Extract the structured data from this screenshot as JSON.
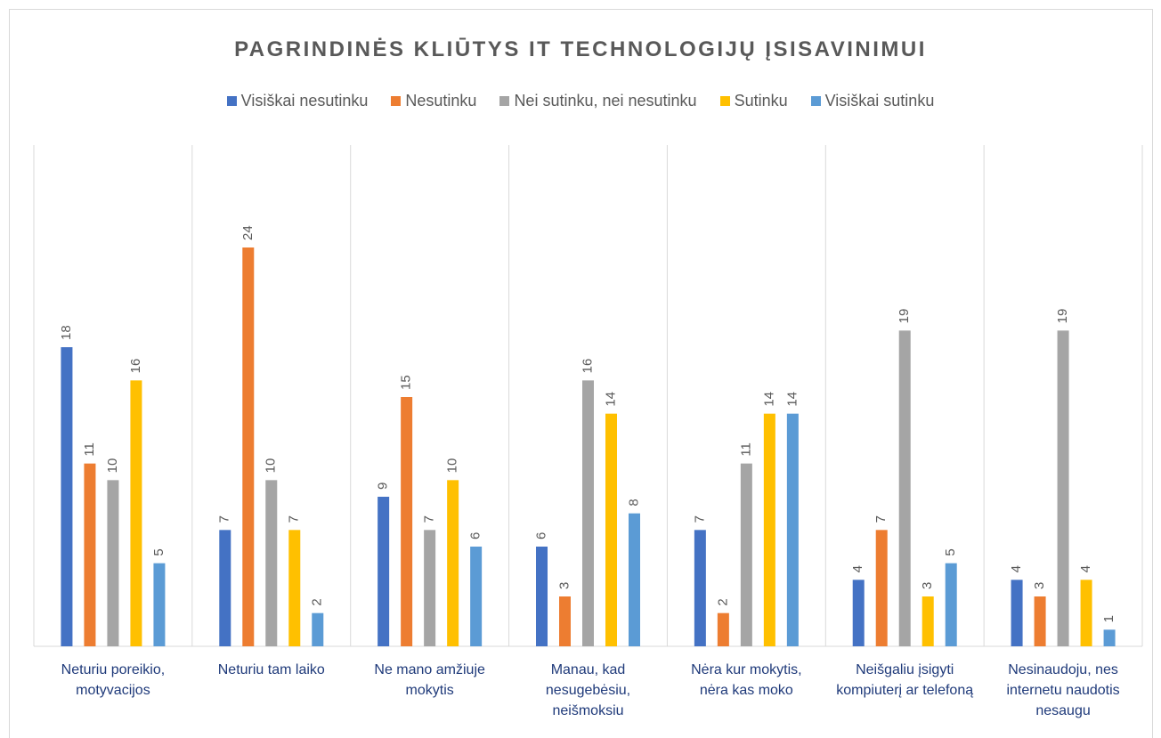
{
  "chart_data": {
    "type": "bar",
    "title": "PAGRINDINĖS KLIŪTYS IT TECHNOLOGIJŲ ĮSISAVINIMUI",
    "categories": [
      "Neturiu poreikio, motyvacijos",
      "Neturiu tam laiko",
      "Ne mano amžiuje mokytis",
      "Manau, kad nesugebėsiu, neišmoksiu",
      "Nėra kur mokytis, nėra kas moko",
      "Neišgaliu įsigyti kompiuterį ar telefoną",
      "Nesinaudoju, nes internetu naudotis nesaugu"
    ],
    "series": [
      {
        "name": "Visiškai nesutinku",
        "color": "#4472c4",
        "values": [
          18,
          7,
          9,
          6,
          7,
          4,
          4
        ]
      },
      {
        "name": "Nesutinku",
        "color": "#ed7d31",
        "values": [
          11,
          24,
          15,
          3,
          2,
          7,
          3
        ]
      },
      {
        "name": "Nei sutinku, nei nesutinku",
        "color": "#a5a5a5",
        "values": [
          10,
          10,
          7,
          16,
          11,
          19,
          19
        ]
      },
      {
        "name": "Sutinku",
        "color": "#ffc000",
        "values": [
          16,
          7,
          10,
          14,
          14,
          3,
          4
        ]
      },
      {
        "name": "Visiškai sutinku",
        "color": "#5b9bd5",
        "values": [
          5,
          2,
          6,
          8,
          14,
          5,
          1
        ]
      }
    ],
    "ylim": [
      0,
      30
    ],
    "legend": "top"
  }
}
